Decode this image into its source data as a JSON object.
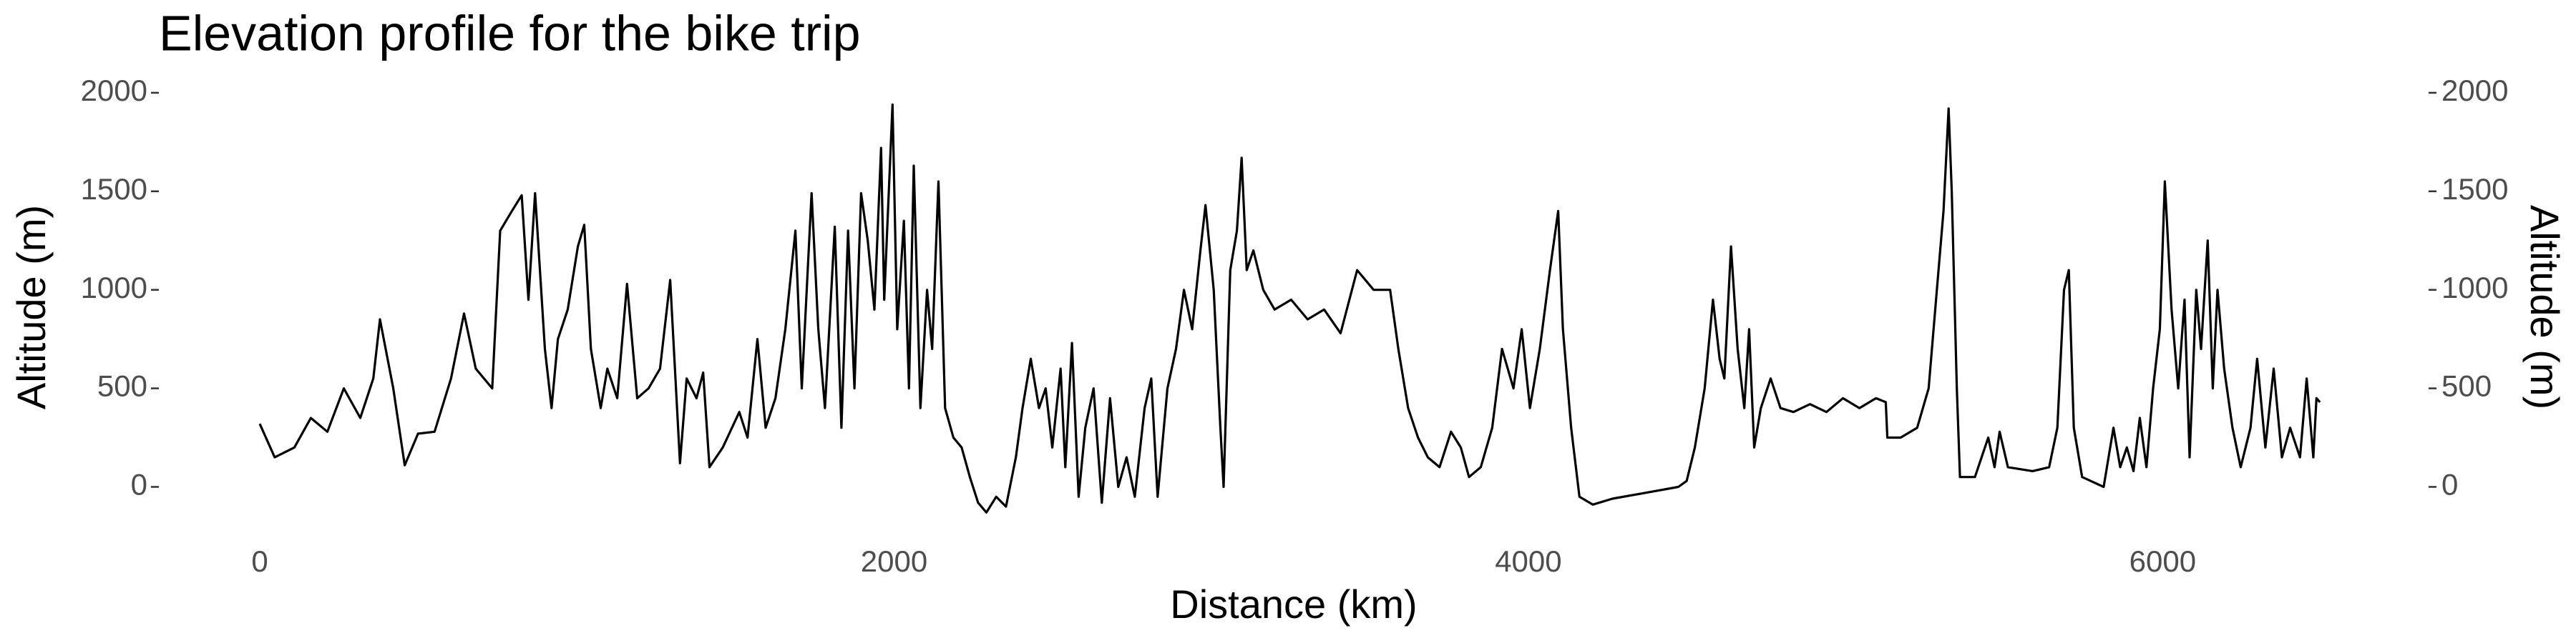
{
  "chart_data": {
    "type": "line",
    "title": "Elevation profile for the bike trip",
    "xlabel": "Distance (km)",
    "ylabel": "Altitude (m)",
    "y2label": "Altitude (m)",
    "color": "#000000",
    "xlim": [
      -325,
      6825
    ],
    "xticks": [
      0,
      2000,
      4000,
      6000
    ],
    "ylim": [
      -223,
      2043
    ],
    "yticks": [
      0,
      500,
      1000,
      1500,
      2000
    ],
    "y2lim": [
      -223,
      2043
    ],
    "y2ticks": [
      0,
      500,
      1000,
      1500,
      2000
    ],
    "x": [
      0,
      47,
      109,
      161,
      213,
      265,
      317,
      358,
      379,
      421,
      457,
      499,
      551,
      603,
      644,
      681,
      733,
      758,
      795,
      826,
      847,
      868,
      899,
      920,
      940,
      971,
      1003,
      1023,
      1044,
      1075,
      1096,
      1127,
      1158,
      1190,
      1226,
      1262,
      1294,
      1325,
      1346,
      1377,
      1398,
      1418,
      1460,
      1512,
      1538,
      1569,
      1595,
      1626,
      1657,
      1689,
      1709,
      1740,
      1761,
      1782,
      1813,
      1834,
      1855,
      1875,
      1896,
      1917,
      1938,
      1959,
      1969,
      1995,
      2010,
      2031,
      2047,
      2062,
      2083,
      2104,
      2120,
      2140,
      2161,
      2187,
      2213,
      2239,
      2265,
      2291,
      2322,
      2353,
      2384,
      2405,
      2431,
      2457,
      2478,
      2499,
      2525,
      2540,
      2561,
      2582,
      2603,
      2629,
      2655,
      2681,
      2707,
      2733,
      2759,
      2790,
      2811,
      2831,
      2862,
      2889,
      2914,
      2940,
      2966,
      2982,
      3008,
      3029,
      3039,
      3060,
      3081,
      3096,
      3112,
      3133,
      3164,
      3200,
      3252,
      3304,
      3356,
      3408,
      3460,
      3512,
      3564,
      3590,
      3621,
      3652,
      3683,
      3720,
      3756,
      3787,
      3813,
      3850,
      3886,
      3917,
      3953,
      3979,
      4005,
      4036,
      4068,
      4094,
      4109,
      4135,
      4161,
      4203,
      4265,
      4369,
      4473,
      4499,
      4525,
      4556,
      4582,
      4603,
      4618,
      4639,
      4660,
      4681,
      4696,
      4712,
      4733,
      4764,
      4795,
      4836,
      4888,
      4940,
      4992,
      5044,
      5096,
      5127,
      5132,
      5174,
      5226,
      5262,
      5288,
      5309,
      5325,
      5335,
      5351,
      5361,
      5408,
      5450,
      5470,
      5486,
      5512,
      5590,
      5642,
      5668,
      5689,
      5704,
      5720,
      5746,
      5814,
      5845,
      5866,
      5887,
      5908,
      5928,
      5949,
      5970,
      5991,
      6007,
      6028,
      6049,
      6069,
      6085,
      6106,
      6121,
      6142,
      6158,
      6173,
      6194,
      6220,
      6246,
      6277,
      6298,
      6324,
      6350,
      6376,
      6402,
      6433,
      6454,
      6475,
      6485,
      6496
    ],
    "values": [
      320,
      150,
      200,
      350,
      280,
      500,
      350,
      550,
      850,
      500,
      110,
      270,
      280,
      550,
      880,
      600,
      500,
      1300,
      1400,
      1480,
      950,
      1490,
      700,
      400,
      750,
      900,
      1220,
      1330,
      700,
      400,
      600,
      450,
      1030,
      450,
      500,
      600,
      1050,
      120,
      550,
      450,
      580,
      100,
      200,
      380,
      250,
      750,
      300,
      450,
      800,
      1300,
      500,
      1490,
      800,
      400,
      1320,
      300,
      1300,
      500,
      1490,
      1250,
      900,
      1720,
      950,
      1940,
      800,
      1350,
      500,
      1630,
      400,
      1000,
      700,
      1550,
      400,
      250,
      200,
      50,
      -80,
      -130,
      -50,
      -100,
      150,
      400,
      650,
      400,
      500,
      200,
      600,
      100,
      730,
      -50,
      300,
      500,
      -80,
      450,
      0,
      150,
      -50,
      400,
      550,
      -50,
      500,
      700,
      1000,
      800,
      1200,
      1430,
      1000,
      300,
      0,
      1100,
      1300,
      1670,
      1100,
      1200,
      1000,
      900,
      950,
      850,
      900,
      780,
      1100,
      1000,
      1000,
      700,
      400,
      250,
      150,
      100,
      280,
      200,
      50,
      100,
      300,
      700,
      500,
      800,
      400,
      700,
      1100,
      1400,
      800,
      300,
      -50,
      -90,
      -60,
      -30,
      0,
      30,
      200,
      500,
      950,
      650,
      550,
      1220,
      700,
      400,
      800,
      200,
      400,
      550,
      400,
      380,
      420,
      380,
      450,
      400,
      450,
      430,
      250,
      250,
      300,
      500,
      1000,
      1400,
      1920,
      1500,
      500,
      50,
      50,
      250,
      100,
      280,
      100,
      80,
      100,
      300,
      1000,
      1100,
      300,
      50,
      0,
      300,
      100,
      200,
      80,
      350,
      100,
      500,
      800,
      1550,
      900,
      500,
      950,
      150,
      1000,
      700,
      1250,
      500,
      1000,
      600,
      300,
      100,
      300,
      650,
      200,
      600,
      150,
      300,
      150,
      550,
      150,
      450,
      430
    ]
  }
}
